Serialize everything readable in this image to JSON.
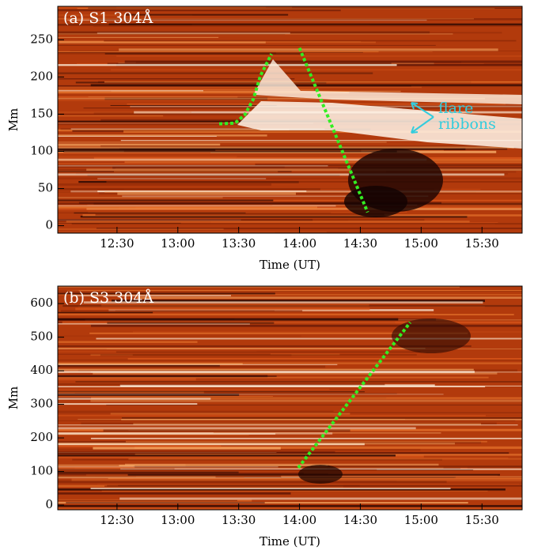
{
  "chart_data": [
    {
      "type": "line",
      "title": "(a) S1 304Å",
      "ylabel": "Mm",
      "xlabel": "Time (UT)",
      "xlim": [
        12.013,
        15.83
      ],
      "ylim": [
        -10,
        295
      ],
      "xticks": [
        {
          "value": 12.5,
          "label": "12:30"
        },
        {
          "value": 13.0,
          "label": "13:00"
        },
        {
          "value": 13.5,
          "label": "13:30"
        },
        {
          "value": 14.0,
          "label": "14:00"
        },
        {
          "value": 14.5,
          "label": "14:30"
        },
        {
          "value": 15.0,
          "label": "15:00"
        },
        {
          "value": 15.5,
          "label": "15:30"
        }
      ],
      "yticks": [
        0,
        50,
        100,
        150,
        200,
        250
      ],
      "lines": [
        {
          "color": "#33ee22",
          "x": [
            13.34,
            13.47,
            13.55,
            13.62,
            13.68,
            13.77
          ],
          "values": [
            137,
            138,
            149,
            170,
            202,
            231
          ]
        },
        {
          "color": "#33ee22",
          "x": [
            14.0,
            14.56
          ],
          "values": [
            239,
            18
          ]
        }
      ],
      "annotation": [
        "flare",
        "ribbons"
      ]
    },
    {
      "type": "line",
      "title": "(b) S3 304Å",
      "ylabel": "Mm",
      "xlabel": "Time (UT)",
      "xlim": [
        12.013,
        15.83
      ],
      "ylim": [
        -14,
        652
      ],
      "xticks": [
        {
          "value": 12.5,
          "label": "12:30"
        },
        {
          "value": 13.0,
          "label": "13:00"
        },
        {
          "value": 13.5,
          "label": "13:30"
        },
        {
          "value": 14.0,
          "label": "14:00"
        },
        {
          "value": 14.5,
          "label": "14:30"
        },
        {
          "value": 15.0,
          "label": "15:00"
        },
        {
          "value": 15.5,
          "label": "15:30"
        }
      ],
      "yticks": [
        0,
        100,
        200,
        300,
        400,
        500,
        600
      ],
      "lines": [
        {
          "color": "#33ee22",
          "x": [
            13.99,
            14.91
          ],
          "values": [
            111,
            544
          ]
        }
      ]
    }
  ]
}
